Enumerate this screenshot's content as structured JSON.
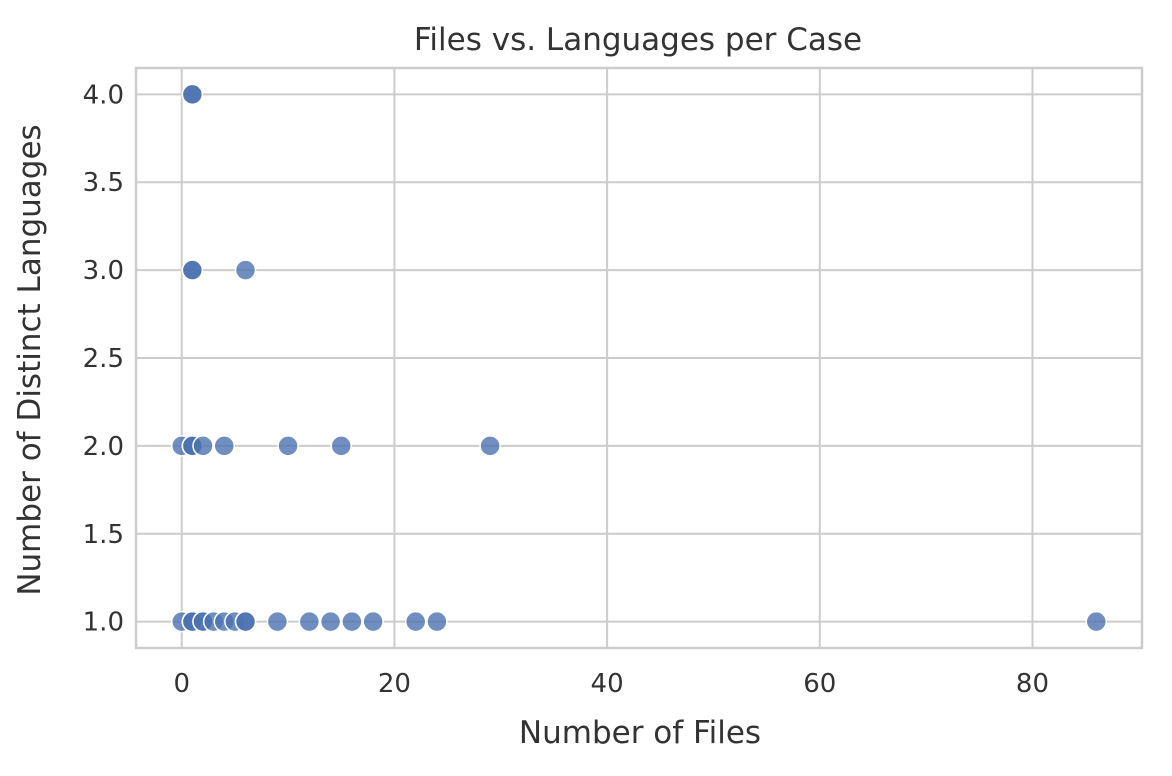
{
  "chart_data": {
    "type": "scatter",
    "title": "Files vs. Languages per Case",
    "xlabel": "Number of Files",
    "ylabel": "Number of Distinct Languages",
    "xlim": [
      -4.3,
      90.3
    ],
    "ylim": [
      0.85,
      4.15
    ],
    "xticks": [
      0,
      20,
      40,
      60,
      80
    ],
    "yticks": [
      1.0,
      1.5,
      2.0,
      2.5,
      3.0,
      3.5,
      4.0
    ],
    "xtick_labels": [
      "0",
      "20",
      "40",
      "60",
      "80"
    ],
    "ytick_labels": [
      "1.0",
      "1.5",
      "2.0",
      "2.5",
      "3.0",
      "3.5",
      "4.0"
    ],
    "grid": true,
    "color": "#4c72b0",
    "points": [
      {
        "x": 1,
        "y": 4
      },
      {
        "x": 1,
        "y": 4
      },
      {
        "x": 1,
        "y": 3
      },
      {
        "x": 1,
        "y": 3
      },
      {
        "x": 6,
        "y": 3
      },
      {
        "x": 0,
        "y": 2
      },
      {
        "x": 1,
        "y": 2
      },
      {
        "x": 1,
        "y": 2
      },
      {
        "x": 1,
        "y": 2
      },
      {
        "x": 2,
        "y": 2
      },
      {
        "x": 4,
        "y": 2
      },
      {
        "x": 10,
        "y": 2
      },
      {
        "x": 15,
        "y": 2
      },
      {
        "x": 29,
        "y": 2
      },
      {
        "x": 0,
        "y": 1
      },
      {
        "x": 1,
        "y": 1
      },
      {
        "x": 1,
        "y": 1
      },
      {
        "x": 1,
        "y": 1
      },
      {
        "x": 2,
        "y": 1
      },
      {
        "x": 2,
        "y": 1
      },
      {
        "x": 3,
        "y": 1
      },
      {
        "x": 4,
        "y": 1
      },
      {
        "x": 5,
        "y": 1
      },
      {
        "x": 6,
        "y": 1
      },
      {
        "x": 6,
        "y": 1
      },
      {
        "x": 9,
        "y": 1
      },
      {
        "x": 12,
        "y": 1
      },
      {
        "x": 14,
        "y": 1
      },
      {
        "x": 16,
        "y": 1
      },
      {
        "x": 18,
        "y": 1
      },
      {
        "x": 22,
        "y": 1
      },
      {
        "x": 24,
        "y": 1
      },
      {
        "x": 86,
        "y": 1
      }
    ]
  }
}
